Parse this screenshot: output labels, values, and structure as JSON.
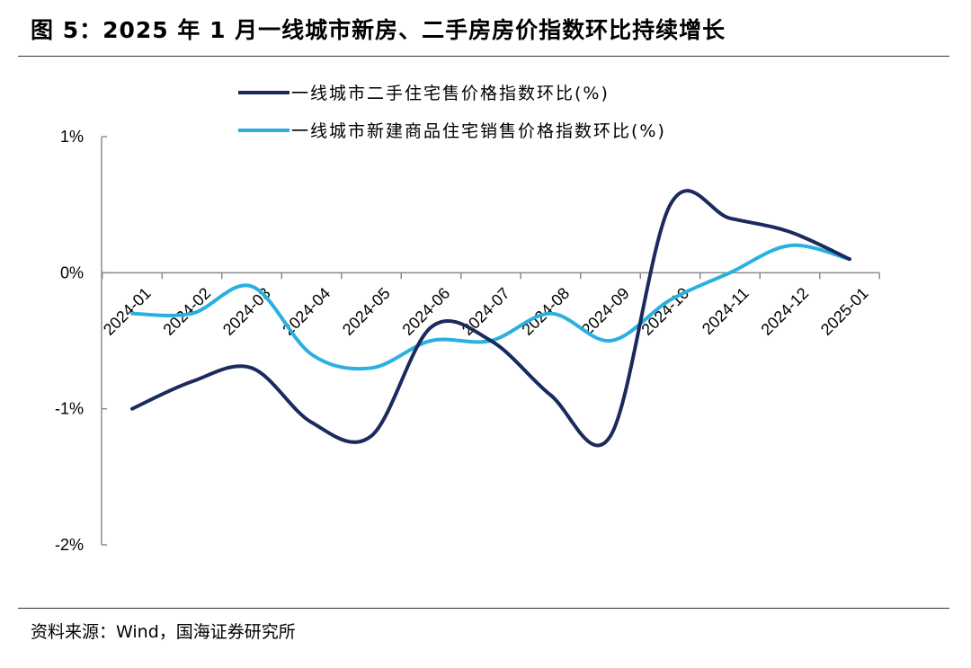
{
  "header": {
    "title": "图 5：2025 年 1 月一线城市新房、二手房房价指数环比持续增长"
  },
  "footer": {
    "source": "资料来源：Wind，国海证券研究所"
  },
  "colors": {
    "series_dark": "#1b2a5e",
    "series_light": "#2ab0e0",
    "axis": "#8c8c8c"
  },
  "chart_data": {
    "type": "line",
    "title": "",
    "xlabel": "",
    "ylabel": "",
    "categories": [
      "2024-01",
      "2024-02",
      "2024-03",
      "2024-04",
      "2024-05",
      "2024-06",
      "2024-07",
      "2024-08",
      "2024-09",
      "2024-10",
      "2024-11",
      "2024-12",
      "2025-01"
    ],
    "y_ticks": [
      1,
      0,
      -1,
      -2
    ],
    "y_tick_labels": [
      "1%",
      "0%",
      "-1%",
      "-2%"
    ],
    "ylim": [
      -2,
      1
    ],
    "grid": false,
    "legend_position": "top",
    "series": [
      {
        "name": "一线城市二手住宅售价格指数环比(%)",
        "color": "#1b2a5e",
        "values": [
          -1.0,
          -0.8,
          -0.7,
          -1.1,
          -1.2,
          -0.4,
          -0.5,
          -0.9,
          -1.2,
          0.5,
          0.4,
          0.3,
          0.1
        ]
      },
      {
        "name": "一线城市新建商品住宅销售价格指数环比(%)",
        "color": "#2ab0e0",
        "values": [
          -0.3,
          -0.3,
          -0.1,
          -0.6,
          -0.7,
          -0.5,
          -0.5,
          -0.3,
          -0.5,
          -0.2,
          0.0,
          0.2,
          0.1
        ]
      }
    ]
  }
}
